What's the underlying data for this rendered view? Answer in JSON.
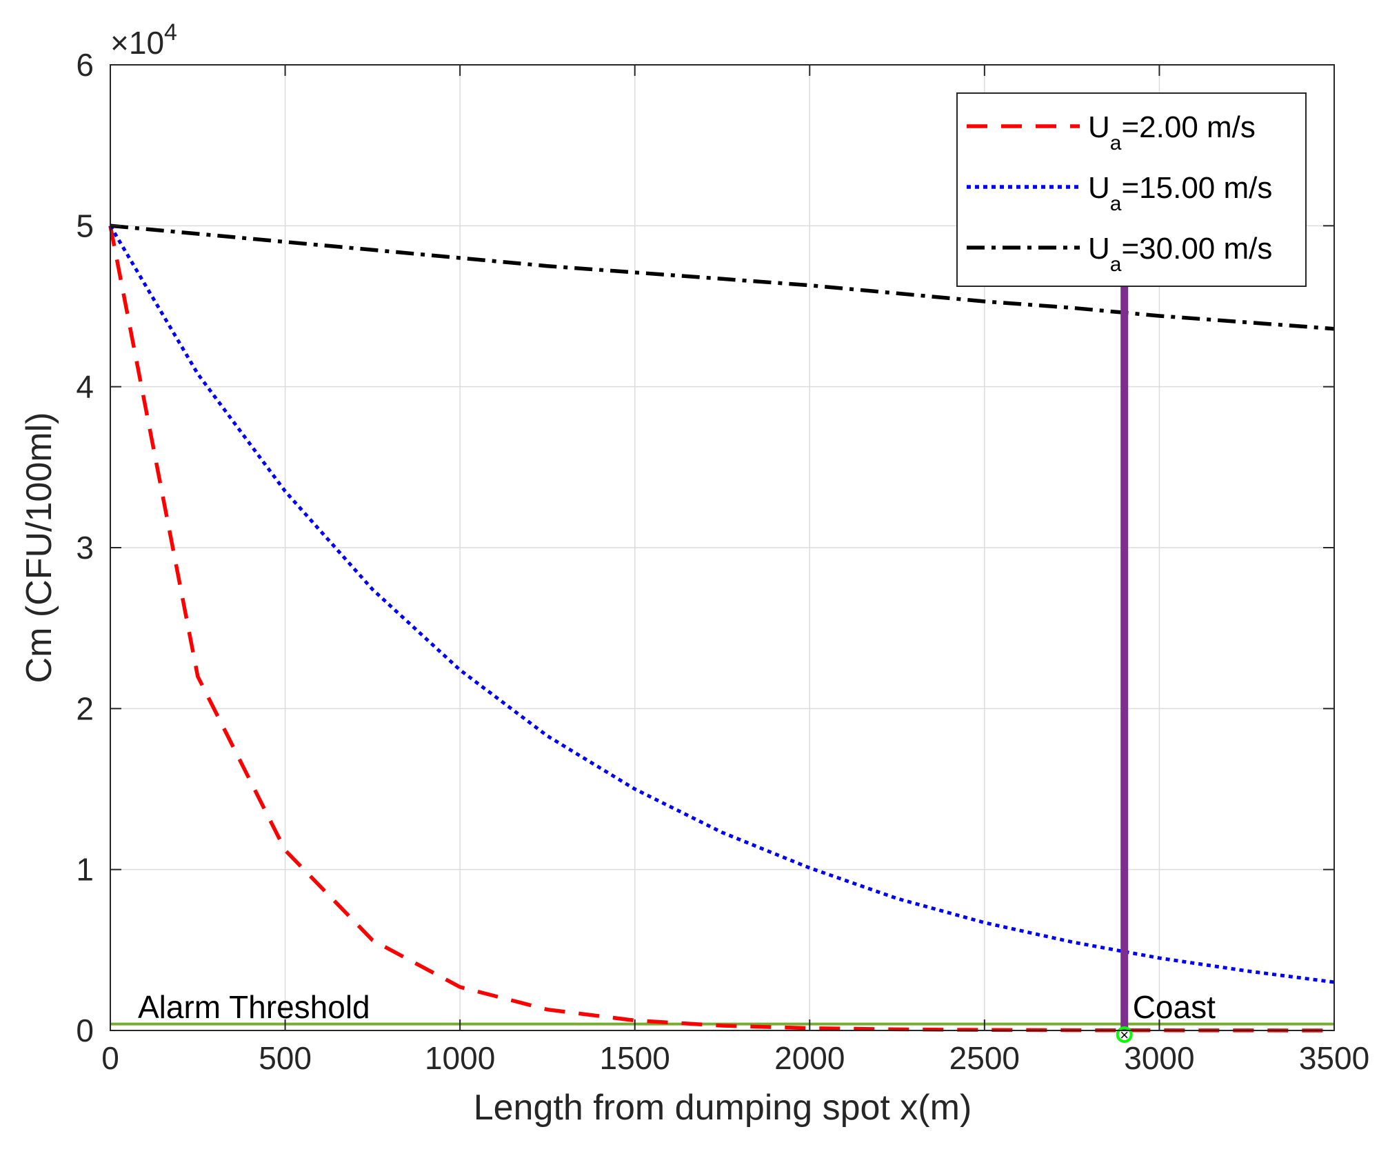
{
  "chart_data": {
    "type": "line",
    "xlabel": "Length from dumping spot x(m)",
    "ylabel": "Cm (CFU/100ml)",
    "y_exponent": "×10",
    "y_exponent_power": "4",
    "xlim": [
      0,
      3500
    ],
    "ylim": [
      0,
      60000
    ],
    "x_ticks": [
      0,
      500,
      1000,
      1500,
      2000,
      2500,
      3000,
      3500
    ],
    "y_ticks": [
      0,
      1,
      2,
      3,
      4,
      5,
      6
    ],
    "grid": true,
    "legend_position": "top-right",
    "x": [
      0,
      250,
      500,
      750,
      1000,
      1250,
      1500,
      1750,
      2000,
      2250,
      2500,
      2750,
      2900,
      3000,
      3250,
      3500
    ],
    "series": [
      {
        "name_main": "U",
        "name_sub": "a",
        "name_rest": "=2.00 m/s",
        "color": "#ff0000",
        "style": "dashed",
        "values": [
          50000,
          22000,
          11200,
          5600,
          2700,
          1300,
          620,
          300,
          140,
          70,
          35,
          16,
          10,
          8,
          4,
          2
        ]
      },
      {
        "name_main": "U",
        "name_sub": "a",
        "name_rest": "=15.00 m/s",
        "color": "#0000ff",
        "style": "dotted",
        "values": [
          50000,
          40800,
          33500,
          27400,
          22400,
          18300,
          15000,
          12300,
          10100,
          8200,
          6700,
          5500,
          4900,
          4500,
          3700,
          3000
        ]
      },
      {
        "name_main": "U",
        "name_sub": "a",
        "name_rest": "=30.00 m/s",
        "color": "#000000",
        "style": "dashdot",
        "values": [
          50000,
          49500,
          49000,
          48500,
          48000,
          47500,
          47100,
          46700,
          46300,
          45800,
          45300,
          44900,
          44600,
          44400,
          44000,
          43600
        ]
      }
    ],
    "threshold": {
      "label": "Alarm Threshold",
      "value": 400,
      "color": "#77ac30"
    },
    "coast": {
      "label": "Coast",
      "x": 2900,
      "color": "#7e2f8e"
    },
    "marker": {
      "x": 2900,
      "y": 0,
      "color": "#00ff00"
    }
  }
}
